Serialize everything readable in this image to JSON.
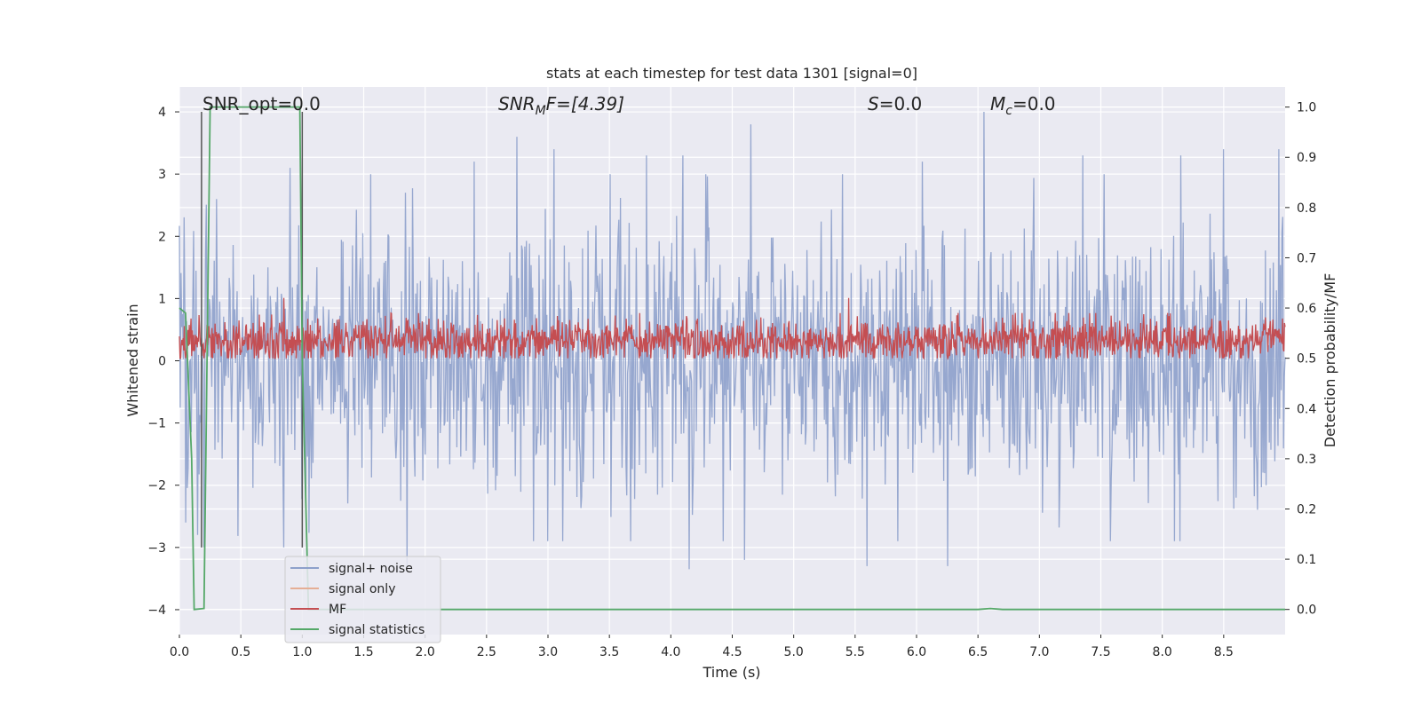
{
  "chart_data": {
    "type": "line",
    "title": "stats at each timestep for test data 1301 [signal=0]",
    "xlabel": "Time (s)",
    "ylabel": "Whitened strain",
    "ylabel_right": "Detection probability/MF",
    "xlim": [
      0.0,
      9.0
    ],
    "ylim": [
      -4.4,
      4.4
    ],
    "ylim_right": [
      -0.05,
      1.04
    ],
    "x_ticks": [
      "0.0",
      "0.5",
      "1.0",
      "1.5",
      "2.0",
      "2.5",
      "3.0",
      "3.5",
      "4.0",
      "4.5",
      "5.0",
      "5.5",
      "6.0",
      "6.5",
      "7.0",
      "7.5",
      "8.0",
      "8.5"
    ],
    "x_tick_values": [
      0.0,
      0.5,
      1.0,
      1.5,
      2.0,
      2.5,
      3.0,
      3.5,
      4.0,
      4.5,
      5.0,
      5.5,
      6.0,
      6.5,
      7.0,
      7.5,
      8.0,
      8.5
    ],
    "y_ticks": [
      "−4",
      "−3",
      "−2",
      "−1",
      "0",
      "1",
      "2",
      "3",
      "4"
    ],
    "y_tick_values": [
      -4,
      -3,
      -2,
      -1,
      0,
      1,
      2,
      3,
      4
    ],
    "y_ticks_right": [
      "0.0",
      "0.1",
      "0.2",
      "0.3",
      "0.4",
      "0.5",
      "0.6",
      "0.7",
      "0.8",
      "0.9",
      "1.0"
    ],
    "y_tick_values_right": [
      0.0,
      0.1,
      0.2,
      0.3,
      0.4,
      0.5,
      0.6,
      0.7,
      0.8,
      0.9,
      1.0
    ],
    "grid": true,
    "legend_position": "lower-left",
    "annotations": {
      "snr_opt": "SNR_opt=0.0",
      "snr_mf_a": "SNR",
      "snr_mf_sub": "M",
      "snr_mf_b": "F=[4.39]",
      "s": "S",
      "s_val": "=0.0",
      "mc": "M",
      "mc_sub": "c",
      "mc_val": "=0.0"
    },
    "vertical_markers": [
      0.18,
      1.0
    ],
    "series": [
      {
        "name": "signal+ noise",
        "color": "#8da0cb",
        "axis": "left",
        "description_range": [
          -3.3,
          4.0
        ],
        "envelope_peaks": [
          [
            0.05,
            2.5
          ],
          [
            0.3,
            2.6
          ],
          [
            0.9,
            3.1
          ],
          [
            1.85,
            3.3
          ],
          [
            2.4,
            3.2
          ],
          [
            2.75,
            3.6
          ],
          [
            3.05,
            3.4
          ],
          [
            3.8,
            3.3
          ],
          [
            4.1,
            3.3
          ],
          [
            4.65,
            3.8
          ],
          [
            5.4,
            3.0
          ],
          [
            6.05,
            3.2
          ],
          [
            6.55,
            4.0
          ],
          [
            7.35,
            3.3
          ],
          [
            8.15,
            3.3
          ],
          [
            8.5,
            3.4
          ],
          [
            8.95,
            3.4
          ]
        ],
        "envelope_troughs": [
          [
            0.05,
            -2.6
          ],
          [
            0.15,
            -2.8
          ],
          [
            0.2,
            -3.0
          ],
          [
            0.85,
            -3.0
          ],
          [
            1.85,
            -3.3
          ],
          [
            3.0,
            -2.9
          ],
          [
            4.15,
            -3.35
          ],
          [
            4.6,
            -3.2
          ],
          [
            5.6,
            -3.3
          ],
          [
            6.25,
            -3.3
          ],
          [
            8.1,
            -2.9
          ]
        ]
      },
      {
        "name": "signal only",
        "color": "#e5ae95",
        "axis": "left",
        "values": []
      },
      {
        "name": "MF",
        "color": "#c44e52",
        "axis": "right",
        "typical_range": [
          0.5,
          0.58
        ],
        "peaks": [
          [
            0.85,
            0.62
          ],
          [
            5.45,
            0.62
          ]
        ]
      },
      {
        "name": "signal statistics",
        "color": "#55a868",
        "axis": "right",
        "x": [
          0.0,
          0.05,
          0.1,
          0.12,
          0.2,
          0.25,
          0.35,
          0.98,
          1.0,
          1.05,
          1.1,
          6.5,
          6.6,
          6.7,
          9.0
        ],
        "values": [
          0.6,
          0.59,
          0.3,
          0.0,
          0.002,
          1.0,
          1.0,
          1.0,
          0.5,
          0.0,
          0.0,
          0.0,
          0.002,
          0.0,
          0.0
        ]
      }
    ]
  },
  "legend": {
    "items": [
      {
        "label": "signal+ noise",
        "color": "#8da0cb"
      },
      {
        "label": "signal only",
        "color": "#e5ae95"
      },
      {
        "label": "MF",
        "color": "#c44e52"
      },
      {
        "label": "signal statistics",
        "color": "#55a868"
      }
    ]
  },
  "colors": {
    "plot_background": "#eaeaf2",
    "grid": "#ffffff",
    "vertical_marker": "#555555"
  }
}
